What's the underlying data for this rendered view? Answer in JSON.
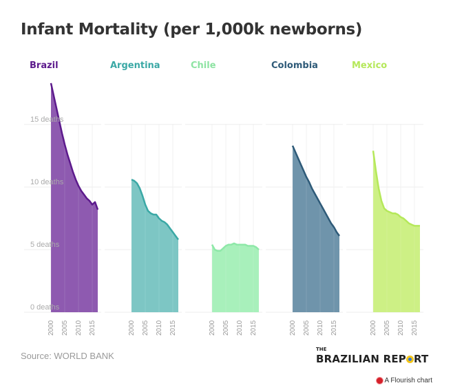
{
  "chart_data": {
    "type": "area",
    "title": "Infant Mortality (per 1,000k newborns)",
    "layout": "small-multiples",
    "ylim": [
      0,
      19
    ],
    "yticks": [
      0,
      5,
      10,
      15
    ],
    "ytick_suffix": " deaths",
    "xticks": [
      2000,
      2005,
      2010,
      2015
    ],
    "xlim": [
      2000,
      2017
    ],
    "grid": true,
    "x": [
      2000,
      2001,
      2002,
      2003,
      2004,
      2005,
      2006,
      2007,
      2008,
      2009,
      2010,
      2011,
      2012,
      2013,
      2014,
      2015,
      2016,
      2017
    ],
    "series": [
      {
        "name": "Brazil",
        "color": "#5c1a8c",
        "fill": "#8e5ab0",
        "values": [
          18.3,
          17.3,
          16.3,
          15.3,
          14.3,
          13.4,
          12.6,
          11.9,
          11.2,
          10.6,
          10.1,
          9.7,
          9.4,
          9.1,
          8.9,
          8.6,
          8.8,
          8.2
        ]
      },
      {
        "name": "Argentina",
        "color": "#3aa8a5",
        "fill": "#7dc6c4",
        "values": [
          10.6,
          10.5,
          10.3,
          9.9,
          9.3,
          8.6,
          8.1,
          7.9,
          7.8,
          7.8,
          7.5,
          7.3,
          7.2,
          7.0,
          6.7,
          6.4,
          6.1,
          5.8
        ]
      },
      {
        "name": "Chile",
        "color": "#8ee8a8",
        "fill": "#a8f0bb",
        "values": [
          5.4,
          5.0,
          4.9,
          4.9,
          5.1,
          5.3,
          5.4,
          5.4,
          5.5,
          5.4,
          5.4,
          5.4,
          5.4,
          5.3,
          5.3,
          5.3,
          5.2,
          5.0
        ]
      },
      {
        "name": "Colombia",
        "color": "#2e5a78",
        "fill": "#6f94ab",
        "values": [
          13.3,
          12.8,
          12.3,
          11.8,
          11.3,
          10.8,
          10.4,
          9.9,
          9.5,
          9.1,
          8.7,
          8.3,
          7.9,
          7.5,
          7.1,
          6.8,
          6.4,
          6.1
        ]
      },
      {
        "name": "Mexico",
        "color": "#b5e85a",
        "fill": "#cdf085",
        "values": [
          12.9,
          11.3,
          9.9,
          8.9,
          8.3,
          8.1,
          8.0,
          7.9,
          7.9,
          7.8,
          7.6,
          7.5,
          7.3,
          7.1,
          7.0,
          6.9,
          6.9,
          6.9
        ]
      }
    ]
  },
  "footer": {
    "source": "Source: WORLD BANK",
    "brand_the": "THE",
    "brand_main_a": "BRAZILIAN REP",
    "brand_main_b": "RT",
    "flourish": "A Flourish chart"
  }
}
